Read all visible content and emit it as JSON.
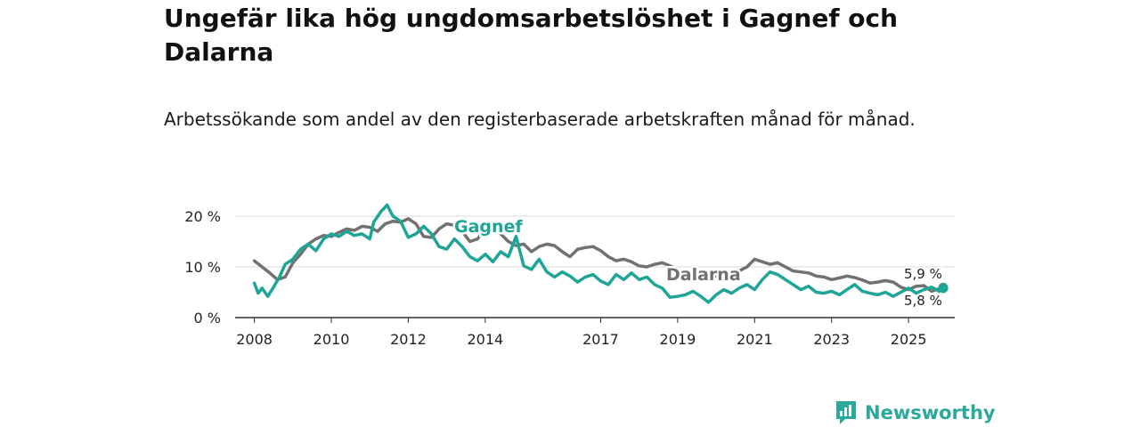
{
  "chart_data": {
    "type": "line",
    "title": "Ungefär lika hög ungdomsarbetslöshet i Gagnef och Dalarna",
    "subtitle": "Arbetssökande som andel av den registerbaserade arbetskraften månad för månad.",
    "xlabel": "",
    "ylabel": "",
    "xlim": [
      2007.5,
      2026.2
    ],
    "ylim": [
      0,
      20
    ],
    "y_ticks": [
      {
        "value": 0,
        "label": "0 %"
      },
      {
        "value": 10,
        "label": "10 %"
      },
      {
        "value": 20,
        "label": "20 %"
      }
    ],
    "x_ticks": [
      {
        "value": 2008,
        "label": "2008"
      },
      {
        "value": 2010,
        "label": "2010"
      },
      {
        "value": 2012,
        "label": "2012"
      },
      {
        "value": 2014,
        "label": "2014"
      },
      {
        "value": 2017,
        "label": "2017"
      },
      {
        "value": 2019,
        "label": "2019"
      },
      {
        "value": 2021,
        "label": "2021"
      },
      {
        "value": 2023,
        "label": "2023"
      },
      {
        "value": 2025,
        "label": "2025"
      }
    ],
    "grid": true,
    "series": [
      {
        "name": "Dalarna",
        "color": "#717171",
        "end_label": "5,9 %",
        "points": [
          [
            2008.0,
            11.2
          ],
          [
            2008.2,
            10.0
          ],
          [
            2008.4,
            8.8
          ],
          [
            2008.6,
            7.5
          ],
          [
            2008.8,
            8.0
          ],
          [
            2009.0,
            10.8
          ],
          [
            2009.2,
            12.5
          ],
          [
            2009.4,
            14.5
          ],
          [
            2009.6,
            15.5
          ],
          [
            2009.8,
            16.2
          ],
          [
            2010.0,
            16.0
          ],
          [
            2010.2,
            16.8
          ],
          [
            2010.4,
            17.5
          ],
          [
            2010.6,
            17.2
          ],
          [
            2010.8,
            18.0
          ],
          [
            2011.0,
            17.8
          ],
          [
            2011.2,
            17.0
          ],
          [
            2011.4,
            18.5
          ],
          [
            2011.6,
            19.0
          ],
          [
            2011.8,
            18.8
          ],
          [
            2012.0,
            19.5
          ],
          [
            2012.2,
            18.5
          ],
          [
            2012.4,
            16.0
          ],
          [
            2012.6,
            15.8
          ],
          [
            2012.8,
            17.5
          ],
          [
            2013.0,
            18.5
          ],
          [
            2013.2,
            18.2
          ],
          [
            2013.4,
            17.0
          ],
          [
            2013.6,
            15.0
          ],
          [
            2013.8,
            15.5
          ],
          [
            2014.0,
            17.5
          ],
          [
            2014.2,
            17.8
          ],
          [
            2014.4,
            16.5
          ],
          [
            2014.6,
            15.0
          ],
          [
            2014.8,
            14.2
          ],
          [
            2015.0,
            14.5
          ],
          [
            2015.2,
            13.0
          ],
          [
            2015.4,
            14.0
          ],
          [
            2015.6,
            14.5
          ],
          [
            2015.8,
            14.2
          ],
          [
            2016.0,
            13.0
          ],
          [
            2016.2,
            12.0
          ],
          [
            2016.4,
            13.5
          ],
          [
            2016.6,
            13.8
          ],
          [
            2016.8,
            14.0
          ],
          [
            2017.0,
            13.2
          ],
          [
            2017.2,
            12.0
          ],
          [
            2017.4,
            11.2
          ],
          [
            2017.6,
            11.5
          ],
          [
            2017.8,
            11.0
          ],
          [
            2018.0,
            10.2
          ],
          [
            2018.2,
            10.0
          ],
          [
            2018.4,
            10.5
          ],
          [
            2018.6,
            10.8
          ],
          [
            2018.8,
            10.2
          ],
          [
            2019.0,
            9.5
          ],
          [
            2019.2,
            8.5
          ],
          [
            2019.4,
            8.2
          ],
          [
            2019.6,
            8.0
          ],
          [
            2019.8,
            8.3
          ],
          [
            2020.2,
            8.0
          ],
          [
            2020.5,
            8.8
          ],
          [
            2020.8,
            10.0
          ],
          [
            2021.0,
            11.5
          ],
          [
            2021.2,
            11.0
          ],
          [
            2021.4,
            10.5
          ],
          [
            2021.6,
            10.8
          ],
          [
            2021.8,
            10.0
          ],
          [
            2022.0,
            9.2
          ],
          [
            2022.2,
            9.0
          ],
          [
            2022.4,
            8.8
          ],
          [
            2022.6,
            8.2
          ],
          [
            2022.8,
            8.0
          ],
          [
            2023.0,
            7.5
          ],
          [
            2023.2,
            7.8
          ],
          [
            2023.4,
            8.2
          ],
          [
            2023.6,
            7.9
          ],
          [
            2023.8,
            7.4
          ],
          [
            2024.0,
            6.8
          ],
          [
            2024.2,
            7.0
          ],
          [
            2024.4,
            7.3
          ],
          [
            2024.6,
            7.0
          ],
          [
            2024.8,
            6.0
          ],
          [
            2025.0,
            5.5
          ],
          [
            2025.2,
            6.2
          ],
          [
            2025.4,
            6.3
          ],
          [
            2025.6,
            5.2
          ],
          [
            2025.8,
            5.7
          ],
          [
            2025.9,
            5.9
          ]
        ]
      },
      {
        "name": "Gagnef",
        "color": "#1fa598",
        "end_label": "5,8 %",
        "points": [
          [
            2008.0,
            6.8
          ],
          [
            2008.1,
            4.8
          ],
          [
            2008.2,
            5.8
          ],
          [
            2008.35,
            4.2
          ],
          [
            2008.5,
            6.0
          ],
          [
            2008.65,
            8.0
          ],
          [
            2008.8,
            10.5
          ],
          [
            2009.0,
            11.5
          ],
          [
            2009.2,
            13.5
          ],
          [
            2009.4,
            14.5
          ],
          [
            2009.6,
            13.2
          ],
          [
            2009.8,
            15.5
          ],
          [
            2010.0,
            16.5
          ],
          [
            2010.2,
            16.0
          ],
          [
            2010.4,
            17.0
          ],
          [
            2010.6,
            16.2
          ],
          [
            2010.8,
            16.5
          ],
          [
            2011.0,
            15.5
          ],
          [
            2011.1,
            18.8
          ],
          [
            2011.3,
            21.0
          ],
          [
            2011.45,
            22.2
          ],
          [
            2011.6,
            20.0
          ],
          [
            2011.8,
            19.0
          ],
          [
            2012.0,
            15.8
          ],
          [
            2012.2,
            16.5
          ],
          [
            2012.4,
            18.0
          ],
          [
            2012.6,
            16.5
          ],
          [
            2012.8,
            14.0
          ],
          [
            2013.0,
            13.5
          ],
          [
            2013.2,
            15.5
          ],
          [
            2013.4,
            14.0
          ],
          [
            2013.6,
            12.0
          ],
          [
            2013.8,
            11.2
          ],
          [
            2014.0,
            12.5
          ],
          [
            2014.2,
            11.0
          ],
          [
            2014.4,
            13.0
          ],
          [
            2014.6,
            12.0
          ],
          [
            2014.8,
            16.0
          ],
          [
            2015.0,
            10.2
          ],
          [
            2015.2,
            9.5
          ],
          [
            2015.4,
            11.5
          ],
          [
            2015.6,
            9.0
          ],
          [
            2015.8,
            8.0
          ],
          [
            2016.0,
            9.0
          ],
          [
            2016.2,
            8.2
          ],
          [
            2016.4,
            7.0
          ],
          [
            2016.6,
            8.0
          ],
          [
            2016.8,
            8.5
          ],
          [
            2017.0,
            7.2
          ],
          [
            2017.2,
            6.5
          ],
          [
            2017.4,
            8.5
          ],
          [
            2017.6,
            7.5
          ],
          [
            2017.8,
            8.8
          ],
          [
            2018.0,
            7.5
          ],
          [
            2018.2,
            8.0
          ],
          [
            2018.4,
            6.5
          ],
          [
            2018.6,
            5.8
          ],
          [
            2018.8,
            4.0
          ],
          [
            2019.0,
            4.2
          ],
          [
            2019.2,
            4.5
          ],
          [
            2019.4,
            5.2
          ],
          [
            2019.6,
            4.2
          ],
          [
            2019.8,
            3.0
          ],
          [
            2020.0,
            4.5
          ],
          [
            2020.2,
            5.5
          ],
          [
            2020.4,
            4.8
          ],
          [
            2020.6,
            5.8
          ],
          [
            2020.8,
            6.5
          ],
          [
            2021.0,
            5.5
          ],
          [
            2021.2,
            7.5
          ],
          [
            2021.4,
            9.0
          ],
          [
            2021.6,
            8.5
          ],
          [
            2021.8,
            7.5
          ],
          [
            2022.0,
            6.5
          ],
          [
            2022.2,
            5.5
          ],
          [
            2022.4,
            6.2
          ],
          [
            2022.6,
            5.0
          ],
          [
            2022.8,
            4.8
          ],
          [
            2023.0,
            5.2
          ],
          [
            2023.2,
            4.5
          ],
          [
            2023.4,
            5.5
          ],
          [
            2023.6,
            6.5
          ],
          [
            2023.8,
            5.2
          ],
          [
            2024.0,
            4.8
          ],
          [
            2024.2,
            4.5
          ],
          [
            2024.4,
            5.0
          ],
          [
            2024.6,
            4.2
          ],
          [
            2024.8,
            5.0
          ],
          [
            2025.0,
            5.8
          ],
          [
            2025.2,
            4.8
          ],
          [
            2025.4,
            5.5
          ],
          [
            2025.6,
            6.0
          ],
          [
            2025.8,
            5.2
          ],
          [
            2025.9,
            5.8
          ]
        ]
      }
    ],
    "annotations": [
      {
        "series": "Gagnef",
        "text": "Gagnef"
      },
      {
        "series": "Dalarna",
        "text": "Dalarna"
      }
    ]
  },
  "logo": {
    "text": "Newsworthy"
  }
}
